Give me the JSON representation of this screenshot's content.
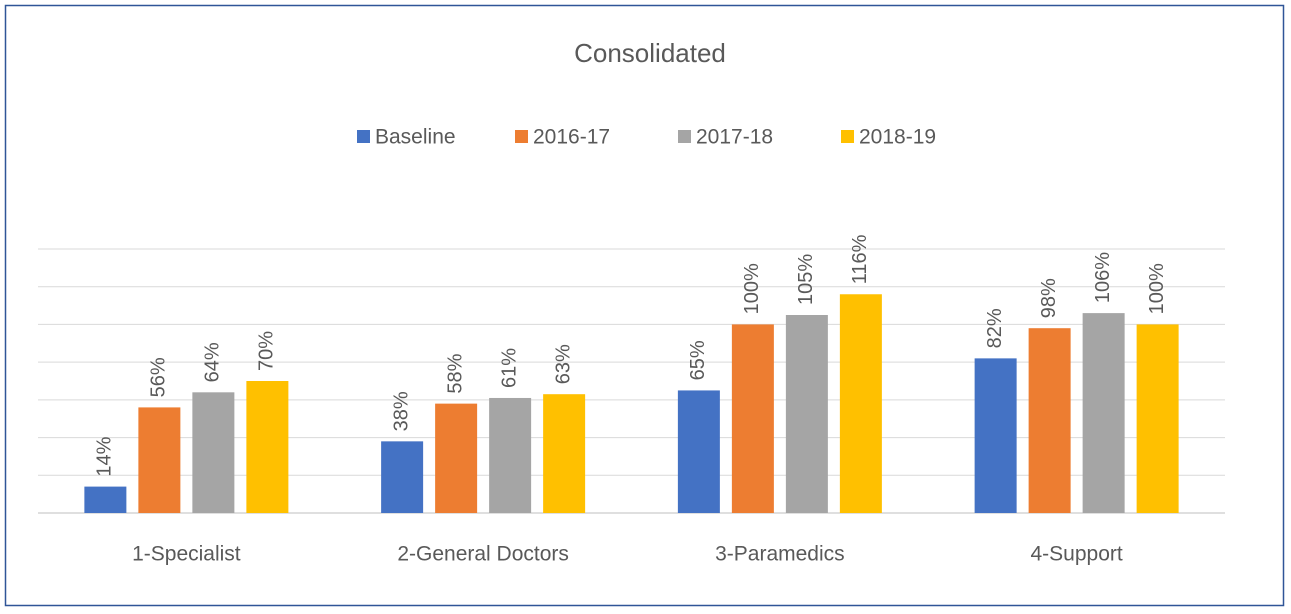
{
  "chart_data": {
    "type": "bar",
    "title": "Consolidated",
    "categories": [
      "1-Specialist",
      "2-General Doctors",
      "3-Paramedics",
      "4-Support"
    ],
    "series": [
      {
        "name": "Baseline",
        "color": "#4472c4",
        "values": [
          14,
          38,
          65,
          82
        ],
        "value_labels": [
          "14%",
          "38%",
          "65%",
          "82%"
        ]
      },
      {
        "name": "2016-17",
        "color": "#ed7d31",
        "values": [
          56,
          58,
          100,
          98
        ],
        "value_labels": [
          "56%",
          "58%",
          "100%",
          "98%"
        ]
      },
      {
        "name": "2017-18",
        "color": "#a5a5a5",
        "values": [
          64,
          61,
          105,
          106
        ],
        "value_labels": [
          "64%",
          "61%",
          "105%",
          "106%"
        ]
      },
      {
        "name": "2018-19",
        "color": "#ffc000",
        "values": [
          70,
          63,
          116,
          100
        ],
        "value_labels": [
          "70%",
          "63%",
          "116%",
          "100%"
        ]
      }
    ],
    "ylim": [
      0,
      140
    ],
    "yticks": [
      0,
      20,
      40,
      60,
      80,
      100,
      120,
      140
    ],
    "grid": true,
    "legend": "top"
  }
}
